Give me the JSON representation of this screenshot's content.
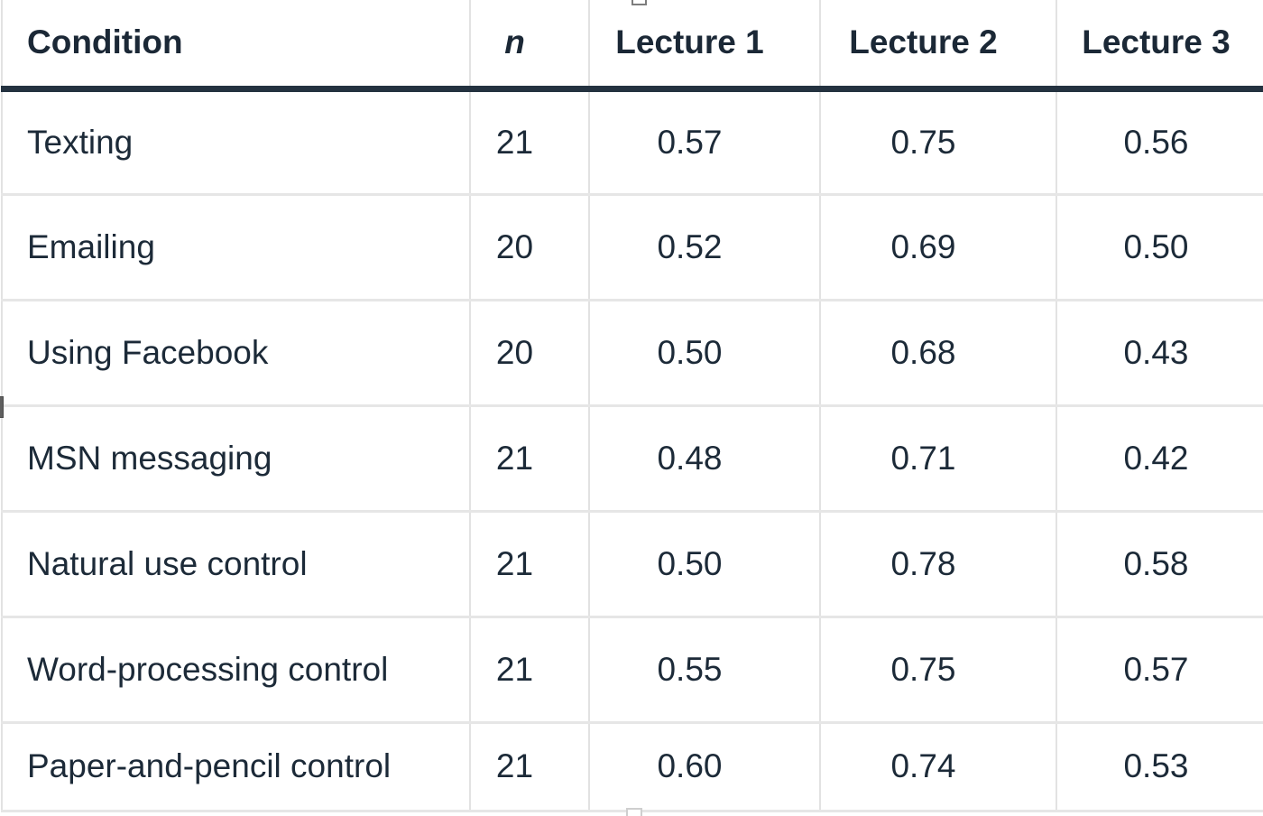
{
  "table": {
    "columns": [
      {
        "key": "condition",
        "label": "Condition",
        "align": "left"
      },
      {
        "key": "n",
        "label": "n",
        "align": "center"
      },
      {
        "key": "lecture1",
        "label": "Lecture 1",
        "align": "center"
      },
      {
        "key": "lecture2",
        "label": "Lecture 2",
        "align": "center"
      },
      {
        "key": "lecture3",
        "label": "Lecture 3",
        "align": "center"
      }
    ],
    "rows": [
      {
        "condition": "Texting",
        "n": "21",
        "lecture1": "0.57",
        "lecture2": "0.75",
        "lecture3": "0.56"
      },
      {
        "condition": "Emailing",
        "n": "20",
        "lecture1": "0.52",
        "lecture2": "0.69",
        "lecture3": "0.50"
      },
      {
        "condition": "Using Facebook",
        "n": "20",
        "lecture1": "0.50",
        "lecture2": "0.68",
        "lecture3": "0.43"
      },
      {
        "condition": "MSN messaging",
        "n": "21",
        "lecture1": "0.48",
        "lecture2": "0.71",
        "lecture3": "0.42"
      },
      {
        "condition": "Natural use control",
        "n": "21",
        "lecture1": "0.50",
        "lecture2": "0.78",
        "lecture3": "0.58"
      },
      {
        "condition": "Word-processing control",
        "n": "21",
        "lecture1": "0.55",
        "lecture2": "0.75",
        "lecture3": "0.57"
      },
      {
        "condition": "Paper-and-pencil control",
        "n": "21",
        "lecture1": "0.60",
        "lecture2": "0.74",
        "lecture3": "0.53"
      }
    ]
  },
  "editor": {
    "selection_handles": [
      "top-center",
      "bottom-center",
      "left-middle"
    ]
  },
  "colors": {
    "text": "#1c2a38",
    "header_rule": "#243240",
    "grid_line": "#e2e2e2",
    "handle_dark": "#5f5f5f",
    "handle_border": "#7d7d7d"
  }
}
